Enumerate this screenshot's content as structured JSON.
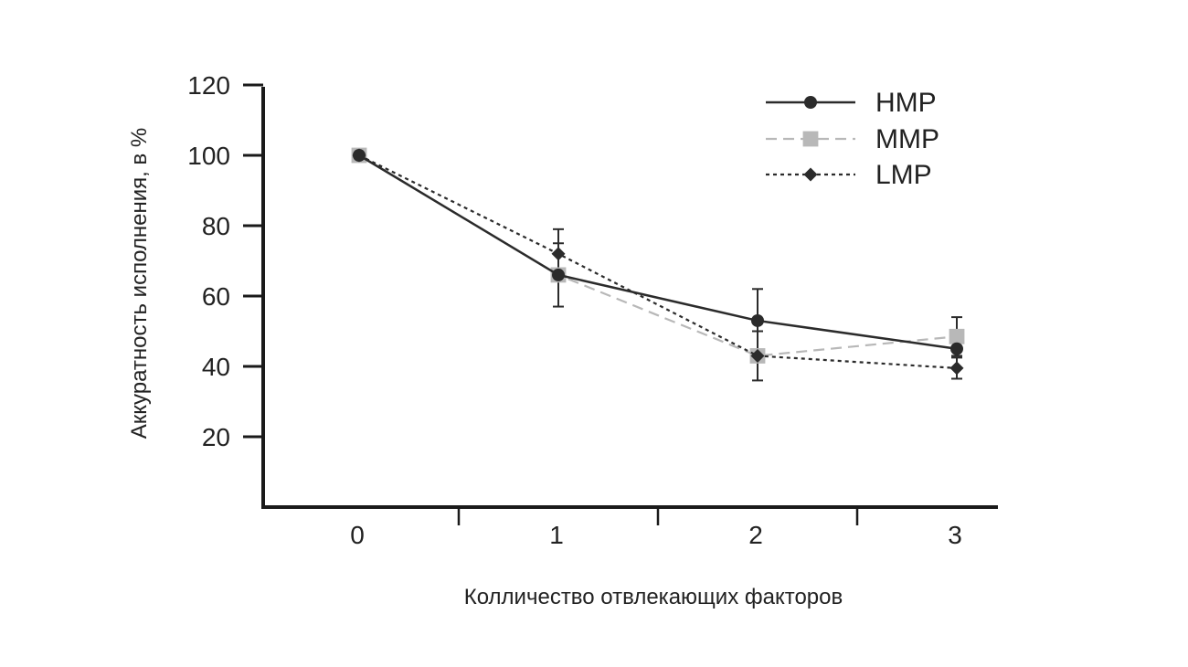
{
  "chart_data": {
    "type": "line",
    "x": [
      0,
      1,
      2,
      3
    ],
    "x_ticks": [
      "0",
      "1",
      "2",
      "3"
    ],
    "y_ticks": [
      "20",
      "40",
      "60",
      "80",
      "100",
      "120"
    ],
    "xlabel": "Колличество отвлекающих факторов",
    "ylabel": "Аккуратность исполнения, в %",
    "ylim": [
      0,
      120
    ],
    "xlim": [
      -0.5,
      3.2
    ],
    "grid": false,
    "legend_position": "top-right",
    "series": [
      {
        "name": "HMP",
        "values": [
          100,
          66,
          53,
          45
        ],
        "error": [
          null,
          9,
          9,
          null
        ],
        "color": "#2b2b2b",
        "line_style": "solid",
        "marker": "circle"
      },
      {
        "name": "MMP",
        "values": [
          100,
          66,
          43,
          48.5
        ],
        "error": [
          null,
          null,
          null,
          5.5
        ],
        "color": "#b8b8b8",
        "line_style": "dashed",
        "marker": "square"
      },
      {
        "name": "LMP",
        "values": [
          100,
          72,
          43,
          39.5
        ],
        "error": [
          null,
          7,
          7,
          3
        ],
        "color": "#2b2b2b",
        "line_style": "dotted",
        "marker": "diamond"
      }
    ]
  }
}
